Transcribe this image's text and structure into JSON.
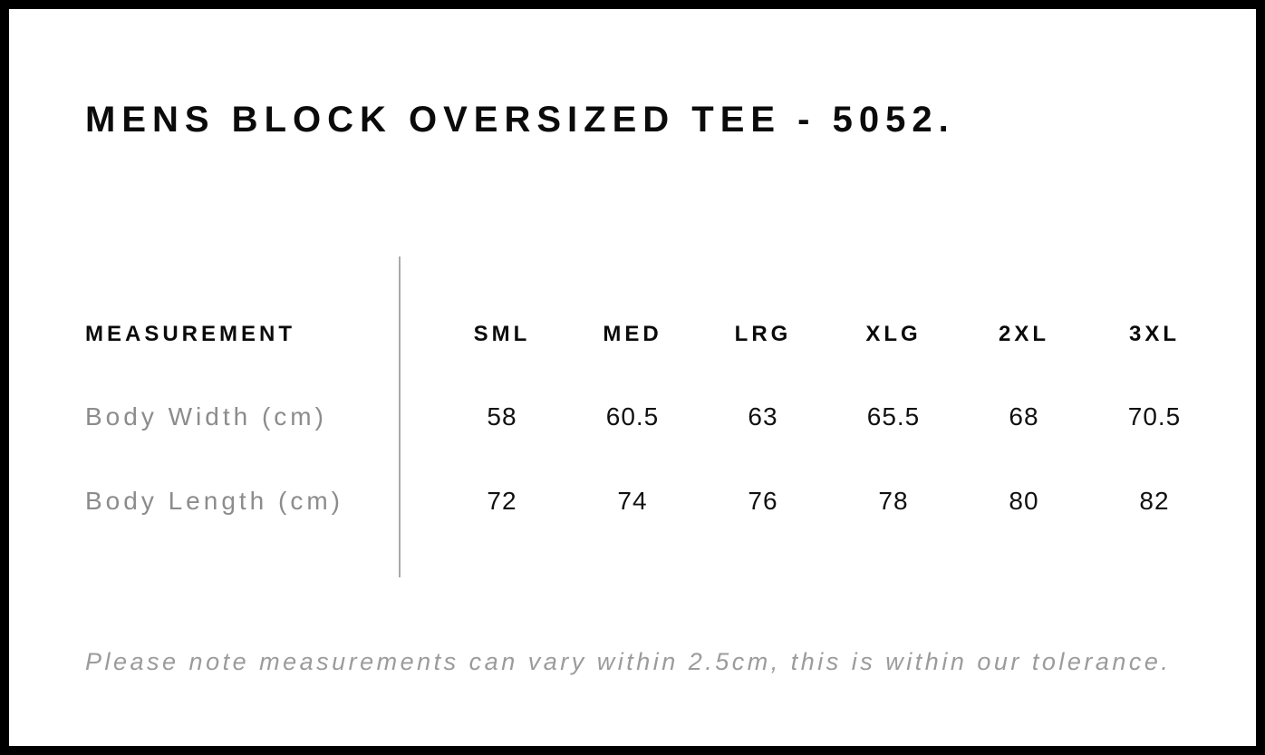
{
  "page": {
    "title": "MENS BLOCK OVERSIZED TEE - 5052.",
    "note": "Please note measurements can vary within 2.5cm, this is within our tolerance."
  },
  "table": {
    "measurement_header": "MEASUREMENT",
    "size_headers": [
      "SML",
      "MED",
      "LRG",
      "XLG",
      "2XL",
      "3XL"
    ],
    "rows": [
      {
        "label": "Body Width (cm)",
        "values": [
          "58",
          "60.5",
          "63",
          "65.5",
          "68",
          "70.5"
        ]
      },
      {
        "label": "Body Length (cm)",
        "values": [
          "72",
          "74",
          "76",
          "78",
          "80",
          "82"
        ]
      }
    ]
  },
  "colors": {
    "frame_border": "#000000",
    "background": "#ffffff",
    "text_primary": "#0b0b0b",
    "label_gray": "#8c8c8c",
    "note_gray": "#9b9b9b",
    "divider_gray": "#aaaaaa"
  },
  "chart_data": {
    "type": "table",
    "title": "MENS BLOCK OVERSIZED TEE - 5052.",
    "columns": [
      "MEASUREMENT",
      "SML",
      "MED",
      "LRG",
      "XLG",
      "2XL",
      "3XL"
    ],
    "rows": [
      [
        "Body Width (cm)",
        58,
        60.5,
        63,
        65.5,
        68,
        70.5
      ],
      [
        "Body Length (cm)",
        72,
        74,
        76,
        78,
        80,
        82
      ]
    ],
    "footnote": "Please note measurements can vary within 2.5cm, this is within our tolerance."
  }
}
